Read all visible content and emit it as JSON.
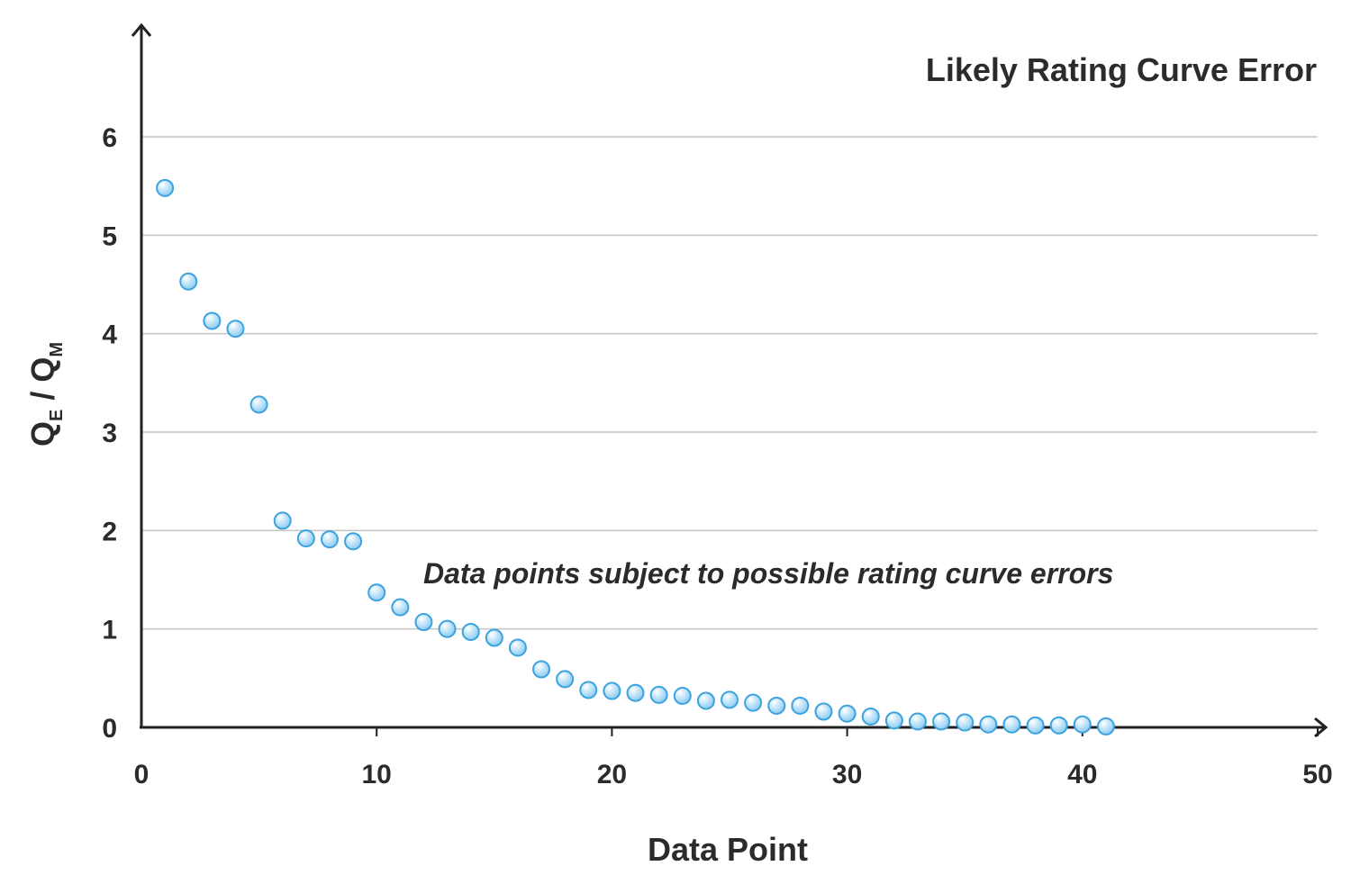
{
  "chart_data": {
    "type": "scatter",
    "title": "Likely Rating Curve Error",
    "annotation": "Data points subject to possible rating curve errors",
    "xlabel": "Data Point",
    "ylabel": {
      "base1": "Q",
      "sub1": "E",
      "sep": " / ",
      "base2": "Q",
      "sub2": "M"
    },
    "xlim": [
      0,
      50
    ],
    "ylim": [
      0,
      6
    ],
    "xticks": [
      "0",
      "10",
      "20",
      "30",
      "40",
      "50"
    ],
    "yticks": [
      "0",
      "1",
      "2",
      "3",
      "4",
      "5",
      "6"
    ],
    "grid": true,
    "marker_color": "#8fcdf2",
    "marker_edge": "#3da3de",
    "x": [
      1,
      2,
      3,
      4,
      5,
      6,
      7,
      8,
      9,
      10,
      11,
      12,
      13,
      14,
      15,
      16,
      17,
      18,
      19,
      20,
      21,
      22,
      23,
      24,
      25,
      26,
      27,
      28,
      29,
      30,
      31,
      32,
      33,
      34,
      35,
      36,
      37,
      38,
      39,
      40,
      41
    ],
    "y": [
      5.48,
      4.53,
      4.13,
      4.05,
      3.28,
      2.1,
      1.92,
      1.91,
      1.89,
      1.37,
      1.22,
      1.07,
      1.0,
      0.97,
      0.91,
      0.81,
      0.59,
      0.49,
      0.38,
      0.37,
      0.35,
      0.33,
      0.32,
      0.27,
      0.28,
      0.25,
      0.22,
      0.22,
      0.16,
      0.14,
      0.11,
      0.07,
      0.06,
      0.06,
      0.05,
      0.03,
      0.03,
      0.02,
      0.02,
      0.03,
      0.01
    ]
  }
}
